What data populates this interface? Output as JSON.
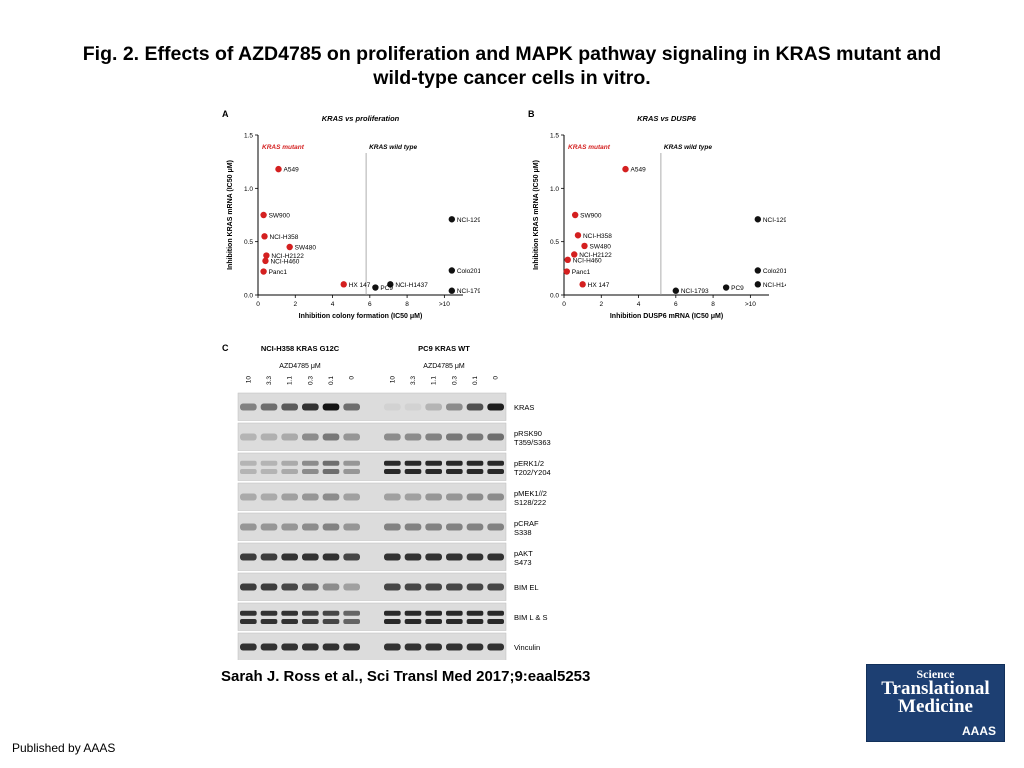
{
  "header": {
    "title_line1": "Fig. 2. Effects of AZD4785 on proliferation and MAPK pathway signaling in KRAS mutant and",
    "title_line2": "wild-type cancer cells in vitro."
  },
  "footer": {
    "citation": "Sarah J. Ross et al., Sci Transl Med 2017;9:eaal5253",
    "published": "Published by AAAS"
  },
  "logo": {
    "line1": "Science",
    "line2": "Translational",
    "line3": "Medicine",
    "line4": "AAAS"
  },
  "panel_c": {
    "letter": "C",
    "group1_title": "NCI-H358 KRAS G12C",
    "group2_title": "PC9 KRAS WT",
    "dose_label": "AZD4785 μM",
    "lanes": [
      "10",
      "3.3",
      "1.1",
      "0.3",
      "0.1",
      "0"
    ],
    "bands": [
      "KRAS",
      "pRSK90 T359/S363",
      "pERK1/2 T202/Y204",
      "pMEK1//2 S128/222",
      "pCRAF S338",
      "pAKT S473",
      "BIM EL",
      "BIM L & S",
      "Vinculin"
    ],
    "band_labels": [
      [
        "KRAS"
      ],
      [
        "pRSK90",
        "T359/S363"
      ],
      [
        "pERK1/2",
        "T202/Y204"
      ],
      [
        "pMEK1//2",
        "S128/222"
      ],
      [
        "pCRAF",
        "S338"
      ],
      [
        "pAKT",
        "S473"
      ],
      [
        "BIM EL"
      ],
      [
        "BIM L & S"
      ],
      [
        "Vinculin"
      ]
    ],
    "intensity_h358": [
      [
        0.45,
        0.55,
        0.65,
        0.85,
        1.0,
        0.55
      ],
      [
        0.2,
        0.22,
        0.25,
        0.4,
        0.5,
        0.35
      ],
      [
        0.2,
        0.2,
        0.25,
        0.4,
        0.55,
        0.35
      ],
      [
        0.25,
        0.25,
        0.3,
        0.35,
        0.4,
        0.3
      ],
      [
        0.35,
        0.35,
        0.35,
        0.4,
        0.45,
        0.35
      ],
      [
        0.8,
        0.8,
        0.85,
        0.85,
        0.85,
        0.75
      ],
      [
        0.8,
        0.8,
        0.75,
        0.6,
        0.4,
        0.3
      ],
      [
        0.85,
        0.85,
        0.85,
        0.8,
        0.75,
        0.6
      ],
      [
        0.85,
        0.85,
        0.85,
        0.85,
        0.85,
        0.85
      ]
    ],
    "intensity_pc9": [
      [
        0.05,
        0.05,
        0.2,
        0.4,
        0.7,
        0.95
      ],
      [
        0.4,
        0.4,
        0.45,
        0.5,
        0.5,
        0.55
      ],
      [
        0.9,
        0.9,
        0.9,
        0.9,
        0.9,
        0.9
      ],
      [
        0.3,
        0.3,
        0.35,
        0.35,
        0.4,
        0.4
      ],
      [
        0.45,
        0.45,
        0.45,
        0.45,
        0.45,
        0.45
      ],
      [
        0.85,
        0.85,
        0.85,
        0.85,
        0.85,
        0.85
      ],
      [
        0.75,
        0.75,
        0.75,
        0.75,
        0.75,
        0.75
      ],
      [
        0.9,
        0.9,
        0.9,
        0.9,
        0.9,
        0.9
      ],
      [
        0.85,
        0.85,
        0.85,
        0.85,
        0.85,
        0.85
      ]
    ]
  },
  "chart_data": [
    {
      "type": "scatter",
      "panel_letter": "A",
      "title": "KRAS vs proliferation",
      "xlabel": "Inhibition colony formation (IC50 μM)",
      "ylabel": "Inhibition KRAS mRNA (IC50 μM)",
      "xlim": [
        0,
        11
      ],
      "ylim": [
        0,
        1.5
      ],
      "xticks": [
        "0",
        "2",
        "4",
        "6",
        "8",
        ">10"
      ],
      "xtick_values": [
        0,
        2,
        4,
        6,
        8,
        10
      ],
      "yticks": [
        "0.0",
        "0.5",
        "1.0",
        "1.5"
      ],
      "ytick_values": [
        0,
        0.5,
        1.0,
        1.5
      ],
      "divider_x": 5.8,
      "region_labels": [
        "KRAS mutant",
        "KRAS wild type"
      ],
      "colors": {
        "mutant": "#d42020",
        "wild_type": "#111111",
        "divider": "#999999"
      },
      "series": [
        {
          "name": "KRAS mutant",
          "points": [
            {
              "label": "A549",
              "x": 1.1,
              "y": 1.18
            },
            {
              "label": "SW900",
              "x": 0.3,
              "y": 0.75
            },
            {
              "label": "NCI-H358",
              "x": 0.35,
              "y": 0.55
            },
            {
              "label": "SW480",
              "x": 1.7,
              "y": 0.45
            },
            {
              "label": "NCI-H2122",
              "x": 0.45,
              "y": 0.37
            },
            {
              "label": "NCI-H460",
              "x": 0.4,
              "y": 0.32
            },
            {
              "label": "Panc1",
              "x": 0.3,
              "y": 0.22
            },
            {
              "label": "HX 147",
              "x": 4.6,
              "y": 0.1
            }
          ]
        },
        {
          "name": "KRAS wild type",
          "points": [
            {
              "label": "NCI-1299",
              "x": 10.4,
              "y": 0.71
            },
            {
              "label": "Colo201",
              "x": 10.4,
              "y": 0.23
            },
            {
              "label": "NCI-H1437",
              "x": 7.1,
              "y": 0.1
            },
            {
              "label": "PC9",
              "x": 6.3,
              "y": 0.07
            },
            {
              "label": "NCI-1793",
              "x": 10.4,
              "y": 0.04
            }
          ]
        }
      ]
    },
    {
      "type": "scatter",
      "panel_letter": "B",
      "title": "KRAS vs DUSP6",
      "xlabel": "Inhibition DUSP6 mRNA (IC50 μM)",
      "ylabel": "Inhibition KRAS mRNA (IC50 μM)",
      "xlim": [
        0,
        11
      ],
      "ylim": [
        0,
        1.5
      ],
      "xticks": [
        "0",
        "2",
        "4",
        "6",
        "8",
        ">10"
      ],
      "xtick_values": [
        0,
        2,
        4,
        6,
        8,
        10
      ],
      "yticks": [
        "0.0",
        "0.5",
        "1.0",
        "1.5"
      ],
      "ytick_values": [
        0,
        0.5,
        1.0,
        1.5
      ],
      "divider_x": 5.2,
      "region_labels": [
        "KRAS mutant",
        "KRAS wild type"
      ],
      "colors": {
        "mutant": "#d42020",
        "wild_type": "#111111",
        "divider": "#999999"
      },
      "series": [
        {
          "name": "KRAS mutant",
          "points": [
            {
              "label": "A549",
              "x": 3.3,
              "y": 1.18
            },
            {
              "label": "SW900",
              "x": 0.6,
              "y": 0.75
            },
            {
              "label": "NCI-H358",
              "x": 0.75,
              "y": 0.56
            },
            {
              "label": "SW480",
              "x": 1.1,
              "y": 0.46
            },
            {
              "label": "NCI-H2122",
              "x": 0.55,
              "y": 0.38
            },
            {
              "label": "NCI-H460",
              "x": 0.2,
              "y": 0.33
            },
            {
              "label": "Panc1",
              "x": 0.15,
              "y": 0.22
            },
            {
              "label": "HX 147",
              "x": 1.0,
              "y": 0.1
            }
          ]
        },
        {
          "name": "KRAS wild type",
          "points": [
            {
              "label": "NCI-1299",
              "x": 10.4,
              "y": 0.71
            },
            {
              "label": "Colo201",
              "x": 10.4,
              "y": 0.23
            },
            {
              "label": "NCI-H1437",
              "x": 10.4,
              "y": 0.1
            },
            {
              "label": "PC9",
              "x": 8.7,
              "y": 0.07
            },
            {
              "label": "NCI-1793",
              "x": 6.0,
              "y": 0.04
            }
          ]
        }
      ]
    }
  ]
}
